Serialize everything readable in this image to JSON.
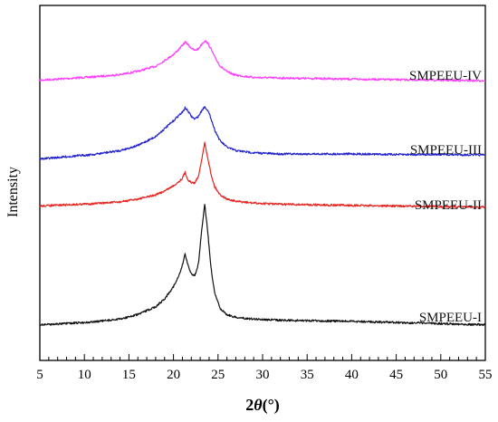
{
  "chart_data": {
    "type": "line",
    "xlabel": "2θ(°)",
    "xlabel_parts": {
      "prefix": "2",
      "symbol": "θ",
      "suffix": "(°)"
    },
    "ylabel": "Intensity",
    "xlim": [
      5,
      55
    ],
    "x_major_ticks": [
      5,
      10,
      15,
      20,
      25,
      30,
      35,
      40,
      45,
      50,
      55
    ],
    "grid": false,
    "y_ticks_labeled": false,
    "series": [
      {
        "name": "SMPEEU-IV",
        "color": "#ff3cff",
        "offset": 3,
        "x": [
          5,
          8,
          11,
          14,
          16,
          18,
          19,
          20,
          20.6,
          21.0,
          21.3,
          21.6,
          22.0,
          22.4,
          22.8,
          23.2,
          23.5,
          23.8,
          24.2,
          24.6,
          25.2,
          26,
          27,
          29,
          32,
          36,
          40,
          45,
          50,
          55
        ],
        "y": [
          0.2,
          0.23,
          0.26,
          0.3,
          0.36,
          0.45,
          0.55,
          0.66,
          0.75,
          0.82,
          0.88,
          0.84,
          0.77,
          0.73,
          0.76,
          0.85,
          0.9,
          0.87,
          0.76,
          0.62,
          0.46,
          0.35,
          0.29,
          0.25,
          0.24,
          0.23,
          0.22,
          0.21,
          0.2,
          0.19
        ]
      },
      {
        "name": "SMPEEU-III",
        "color": "#2323cc",
        "offset": 2,
        "x": [
          5,
          8,
          11,
          14,
          16,
          18,
          19,
          20,
          20.6,
          21.0,
          21.3,
          21.6,
          22.0,
          22.4,
          22.8,
          23.2,
          23.5,
          23.8,
          24.2,
          24.6,
          25.2,
          26,
          27,
          29,
          32,
          36,
          40,
          45,
          50,
          55
        ],
        "y": [
          0.12,
          0.16,
          0.2,
          0.27,
          0.36,
          0.52,
          0.66,
          0.8,
          0.9,
          0.95,
          1.03,
          0.98,
          0.88,
          0.83,
          0.88,
          0.99,
          1.05,
          1.0,
          0.85,
          0.65,
          0.45,
          0.33,
          0.27,
          0.23,
          0.21,
          0.21,
          0.21,
          0.2,
          0.2,
          0.19
        ]
      },
      {
        "name": "SMPEEU-II",
        "color": "#e8231f",
        "offset": 1,
        "x": [
          5,
          8,
          11,
          14,
          16,
          18,
          19,
          20,
          20.6,
          21.0,
          21.3,
          21.6,
          22.0,
          22.4,
          22.8,
          23.2,
          23.5,
          23.8,
          24.2,
          24.6,
          25.2,
          26,
          27,
          29,
          32,
          36,
          40,
          45,
          50,
          55
        ],
        "y": [
          0.18,
          0.2,
          0.22,
          0.25,
          0.3,
          0.37,
          0.44,
          0.53,
          0.6,
          0.66,
          0.76,
          0.64,
          0.58,
          0.58,
          0.7,
          1.0,
          1.27,
          1.05,
          0.74,
          0.52,
          0.38,
          0.3,
          0.26,
          0.23,
          0.21,
          0.2,
          0.19,
          0.18,
          0.17,
          0.16
        ]
      },
      {
        "name": "SMPEEU-I",
        "color": "#111111",
        "offset": 0,
        "x": [
          5,
          8,
          11,
          14,
          16,
          18,
          19,
          20,
          20.6,
          21.0,
          21.3,
          21.6,
          22.0,
          22.4,
          22.8,
          23.2,
          23.5,
          23.8,
          24.2,
          24.6,
          25.2,
          26,
          27,
          29,
          32,
          36,
          40,
          45,
          50,
          55
        ],
        "y": [
          0.12,
          0.14,
          0.17,
          0.22,
          0.3,
          0.44,
          0.58,
          0.8,
          0.98,
          1.18,
          1.38,
          1.2,
          1.02,
          1.0,
          1.2,
          1.85,
          2.27,
          1.85,
          1.15,
          0.7,
          0.42,
          0.3,
          0.25,
          0.22,
          0.2,
          0.19,
          0.18,
          0.16,
          0.14,
          0.12
        ]
      }
    ]
  }
}
